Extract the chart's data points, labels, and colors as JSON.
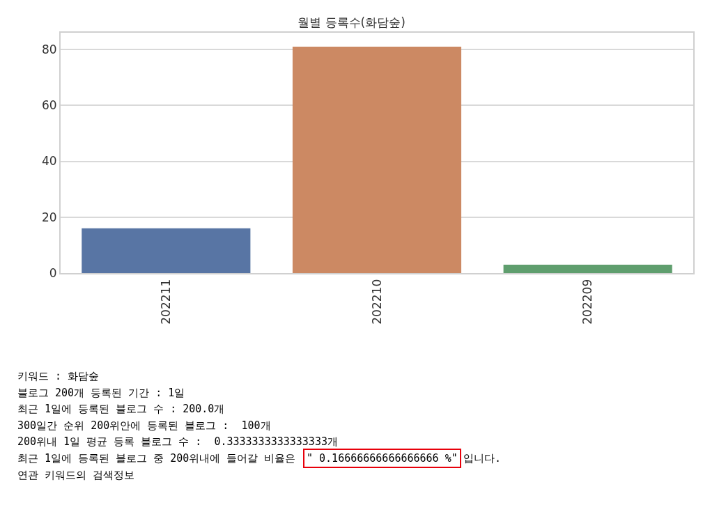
{
  "chart_data": {
    "type": "bar",
    "title": "월별 등록수(화담숲)",
    "categories": [
      "202211",
      "202210",
      "202209"
    ],
    "values": [
      16,
      81,
      3
    ],
    "colors": [
      "#5875a4",
      "#cc8963",
      "#5f9e6e"
    ],
    "ylim": [
      0,
      86
    ],
    "yticks": [
      0,
      20,
      40,
      60,
      80
    ],
    "grid": "y",
    "annotations": [
      "키워드 : 화담숲",
      "블로그 200개 등록된 기간 : 1일",
      "최근 1일에 등록된 블로그 수 : 200.0개",
      "300일간 순위 200위안에 등록된 블로그 :  100개",
      "200위내 1일 평균 등록 블로그 수 :  0.3333333333333333개",
      "최근 1일에 등록된 블로그 중 200위내에 들어갈 비율은",
      "\" 0.16666666666666666 %\"",
      "입니다.",
      "연관 키워드의 검색정보"
    ]
  }
}
